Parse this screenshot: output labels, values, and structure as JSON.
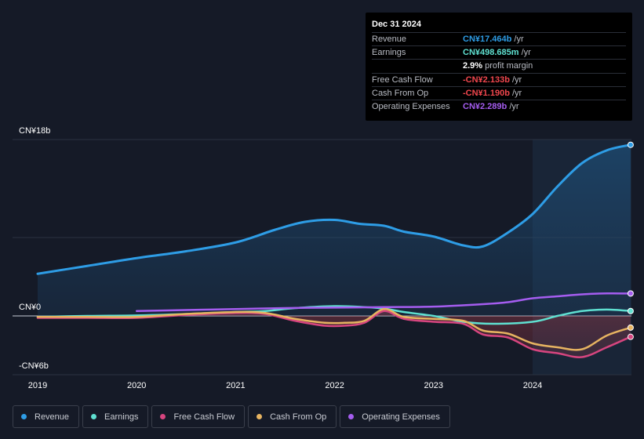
{
  "tooltip": {
    "date": "Dec 31 2024",
    "rows": [
      {
        "label": "Revenue",
        "value": "CN¥17.464b",
        "unit": " /yr",
        "color": "#2e9de6"
      },
      {
        "label": "Earnings",
        "value": "CN¥498.685m",
        "unit": " /yr",
        "color": "#5fe0d1"
      },
      {
        "label": "",
        "value": "2.9%",
        "unit": " profit margin",
        "color": "#ffffff"
      },
      {
        "label": "Free Cash Flow",
        "value": "-CN¥2.133b",
        "unit": " /yr",
        "color": "#f2474e"
      },
      {
        "label": "Cash From Op",
        "value": "-CN¥1.190b",
        "unit": " /yr",
        "color": "#f2474e"
      },
      {
        "label": "Operating Expenses",
        "value": "CN¥2.289b",
        "unit": " /yr",
        "color": "#a55df0"
      }
    ]
  },
  "legend": [
    {
      "name": "Revenue",
      "color": "#2e9de6"
    },
    {
      "name": "Earnings",
      "color": "#5fe0d1"
    },
    {
      "name": "Free Cash Flow",
      "color": "#d6457f"
    },
    {
      "name": "Cash From Op",
      "color": "#e7b461"
    },
    {
      "name": "Operating Expenses",
      "color": "#a55df0"
    }
  ],
  "chart_data": {
    "type": "line",
    "title": "",
    "units": "CN¥ billions",
    "ylim": [
      -6,
      18
    ],
    "y_tick_labels": [
      {
        "value": 18,
        "label": "CN¥18b"
      },
      {
        "value": 0,
        "label": "CN¥0"
      },
      {
        "value": -6,
        "label": "-CN¥6b"
      }
    ],
    "xlim": [
      2018.88,
      2024.99
    ],
    "x_ticks": [
      2019,
      2020,
      2021,
      2022,
      2023,
      2024
    ],
    "highlight_from": 2024.0,
    "series": [
      {
        "name": "Revenue",
        "color": "#2e9de6",
        "area": true,
        "x": [
          2019.0,
          2019.5,
          2020.0,
          2020.5,
          2021.0,
          2021.4,
          2021.7,
          2022.0,
          2022.25,
          2022.5,
          2022.7,
          2023.0,
          2023.3,
          2023.5,
          2023.75,
          2024.0,
          2024.25,
          2024.5,
          2024.75,
          2024.99
        ],
        "y": [
          4.3,
          5.1,
          5.9,
          6.6,
          7.5,
          8.8,
          9.6,
          9.8,
          9.4,
          9.2,
          8.6,
          8.1,
          7.2,
          7.1,
          8.5,
          10.4,
          13.2,
          15.6,
          16.9,
          17.464
        ]
      },
      {
        "name": "Earnings",
        "color": "#5fe0d1",
        "x": [
          2019.0,
          2019.5,
          2020.0,
          2020.5,
          2021.0,
          2021.3,
          2021.6,
          2022.0,
          2022.3,
          2022.5,
          2022.7,
          2023.0,
          2023.3,
          2023.6,
          2024.0,
          2024.25,
          2024.5,
          2024.75,
          2024.99
        ],
        "y": [
          -0.1,
          0.0,
          0.05,
          0.2,
          0.4,
          0.5,
          0.8,
          1.0,
          0.9,
          0.75,
          0.4,
          0.0,
          -0.6,
          -0.8,
          -0.6,
          0.0,
          0.5,
          0.65,
          0.499
        ]
      },
      {
        "name": "Free Cash Flow",
        "color": "#d6457f",
        "x": [
          2019.0,
          2019.5,
          2020.0,
          2020.5,
          2021.0,
          2021.3,
          2021.6,
          2021.9,
          2022.1,
          2022.3,
          2022.5,
          2022.7,
          2023.0,
          2023.3,
          2023.5,
          2023.75,
          2024.0,
          2024.25,
          2024.5,
          2024.75,
          2024.99
        ],
        "y": [
          -0.2,
          -0.2,
          -0.2,
          0.1,
          0.3,
          0.2,
          -0.5,
          -1.0,
          -1.0,
          -0.7,
          0.5,
          -0.3,
          -0.6,
          -0.8,
          -1.9,
          -2.2,
          -3.4,
          -3.8,
          -4.2,
          -3.2,
          -2.133
        ]
      },
      {
        "name": "Cash From Op",
        "color": "#e7b461",
        "x": [
          2019.0,
          2019.5,
          2020.0,
          2020.5,
          2021.0,
          2021.3,
          2021.6,
          2021.9,
          2022.1,
          2022.3,
          2022.5,
          2022.7,
          2023.0,
          2023.3,
          2023.5,
          2023.75,
          2024.0,
          2024.25,
          2024.5,
          2024.75,
          2024.99
        ],
        "y": [
          -0.1,
          -0.1,
          -0.1,
          0.2,
          0.4,
          0.3,
          -0.3,
          -0.7,
          -0.7,
          -0.5,
          0.7,
          -0.1,
          -0.3,
          -0.5,
          -1.5,
          -1.8,
          -2.8,
          -3.2,
          -3.4,
          -2.0,
          -1.19
        ]
      },
      {
        "name": "Operating Expenses",
        "color": "#a55df0",
        "x": [
          2020.0,
          2020.5,
          2021.0,
          2021.5,
          2022.0,
          2022.5,
          2023.0,
          2023.5,
          2023.75,
          2024.0,
          2024.25,
          2024.5,
          2024.75,
          2024.99
        ],
        "y": [
          0.5,
          0.6,
          0.7,
          0.8,
          0.85,
          0.9,
          0.95,
          1.2,
          1.4,
          1.8,
          2.0,
          2.2,
          2.3,
          2.289
        ]
      }
    ]
  }
}
